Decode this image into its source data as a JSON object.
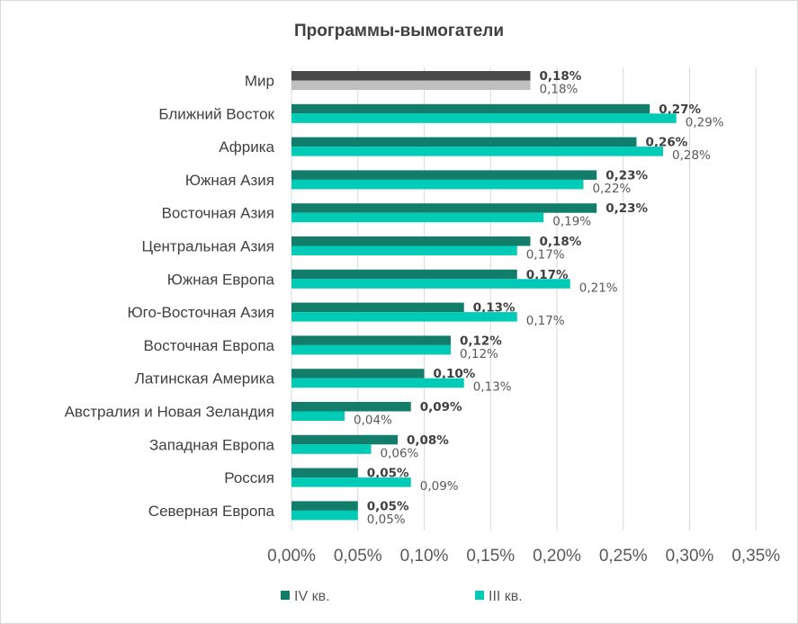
{
  "chart_data": {
    "type": "bar",
    "orientation": "horizontal",
    "title": "Программы-вымогатели",
    "categories": [
      "Мир",
      "Ближний Восток",
      "Африка",
      "Южная Азия",
      "Восточная Азия",
      "Центральная Азия",
      "Южная Европа",
      "Юго-Восточная Азия",
      "Восточная Европа",
      "Латинская Америка",
      "Австралия и Новая Зеландия",
      "Западная Европа",
      "Россия",
      "Северная Европа"
    ],
    "series": [
      {
        "name": "IV кв.",
        "values": [
          0.18,
          0.27,
          0.26,
          0.23,
          0.23,
          0.18,
          0.17,
          0.13,
          0.12,
          0.1,
          0.09,
          0.08,
          0.05,
          0.05
        ],
        "labels": [
          "0,18%",
          "0,27%",
          "0,26%",
          "0,23%",
          "0,23%",
          "0,18%",
          "0,17%",
          "0,13%",
          "0,12%",
          "0,10%",
          "0,09%",
          "0,08%",
          "0,05%",
          "0,05%"
        ]
      },
      {
        "name": "III кв.",
        "values": [
          0.18,
          0.29,
          0.28,
          0.22,
          0.19,
          0.17,
          0.21,
          0.17,
          0.12,
          0.13,
          0.04,
          0.06,
          0.09,
          0.05
        ],
        "labels": [
          "0,18%",
          "0,29%",
          "0,28%",
          "0,22%",
          "0,19%",
          "0,17%",
          "0,21%",
          "0,17%",
          "0,12%",
          "0,13%",
          "0,04%",
          "0,06%",
          "0,09%",
          "0,05%"
        ]
      }
    ],
    "xlim": [
      0,
      0.35
    ],
    "xticks": [
      "0,00%",
      "0,05%",
      "0,10%",
      "0,15%",
      "0,20%",
      "0,25%",
      "0,30%",
      "0,35%"
    ],
    "grid": true,
    "legend": "bottom",
    "colors": {
      "q4": "#127d6b",
      "q3": "#00cbb6",
      "world_q4": "#4a4a4a",
      "world_q3": "#bfbfbf"
    }
  }
}
